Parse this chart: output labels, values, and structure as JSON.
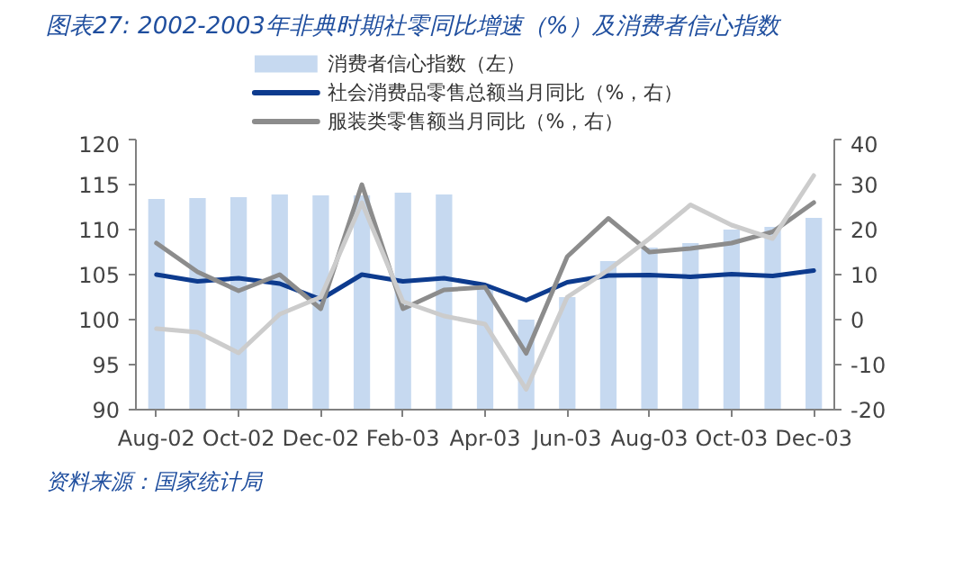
{
  "chart_data": {
    "type": "bar",
    "title": "图表27: 2002-2003年非典时期社零同比增速（%）及消费者信心指数",
    "categories": [
      "Aug-02",
      null,
      "Oct-02",
      null,
      "Dec-02",
      null,
      "Feb-03",
      null,
      "Apr-03",
      null,
      "Jun-03",
      null,
      "Aug-03",
      null,
      "Oct-03",
      null,
      "Dec-03"
    ],
    "series": [
      {
        "name": "消费者信心指数（左）",
        "color": "#c6d9f0",
        "values": [
          113.4,
          113.5,
          113.6,
          113.9,
          113.8,
          113.8,
          114.1,
          113.9,
          103.5,
          100,
          102.5,
          106.5,
          108,
          108.5,
          110,
          110.3,
          111.3
        ]
      },
      {
        "name": "社会消费品零售总额当月同比（%，右）",
        "type": "line",
        "axis": "y2",
        "color": "#0d3b8e",
        "values": [
          10,
          8.5,
          9.2,
          8,
          4.5,
          10,
          8.5,
          9.2,
          7.7,
          4.3,
          8.3,
          9.8,
          9.9,
          9.5,
          10.1,
          9.7,
          10.9
        ]
      },
      {
        "name": "服装类零售额当月同比（%，右）",
        "type": "line",
        "axis": "y2",
        "color": "#8c8c8c",
        "values": [
          17,
          10.6,
          6.4,
          10,
          2.4,
          30,
          2.4,
          6.6,
          7.2,
          -7.5,
          14,
          22.5,
          15,
          15.8,
          17,
          19.5,
          26
        ]
      },
      {
        "type": "line",
        "axis": "y2",
        "color": "#cccccc",
        "values": [
          -2,
          -2.8,
          -7.4,
          1.2,
          5,
          26,
          4,
          0.8,
          -1,
          -15.5,
          5,
          11,
          18,
          25.5,
          21,
          18,
          32
        ]
      }
    ],
    "ylim": [
      90,
      120
    ],
    "yticks": [
      90,
      95,
      100,
      105,
      110,
      115,
      120
    ],
    "y2lim": [
      -20,
      40
    ],
    "y2ticks": [
      -20,
      -10,
      0,
      10,
      20,
      30,
      40
    ],
    "grid": false,
    "legend": "top",
    "annotations": [
      "资料来源：国家统计局"
    ]
  }
}
